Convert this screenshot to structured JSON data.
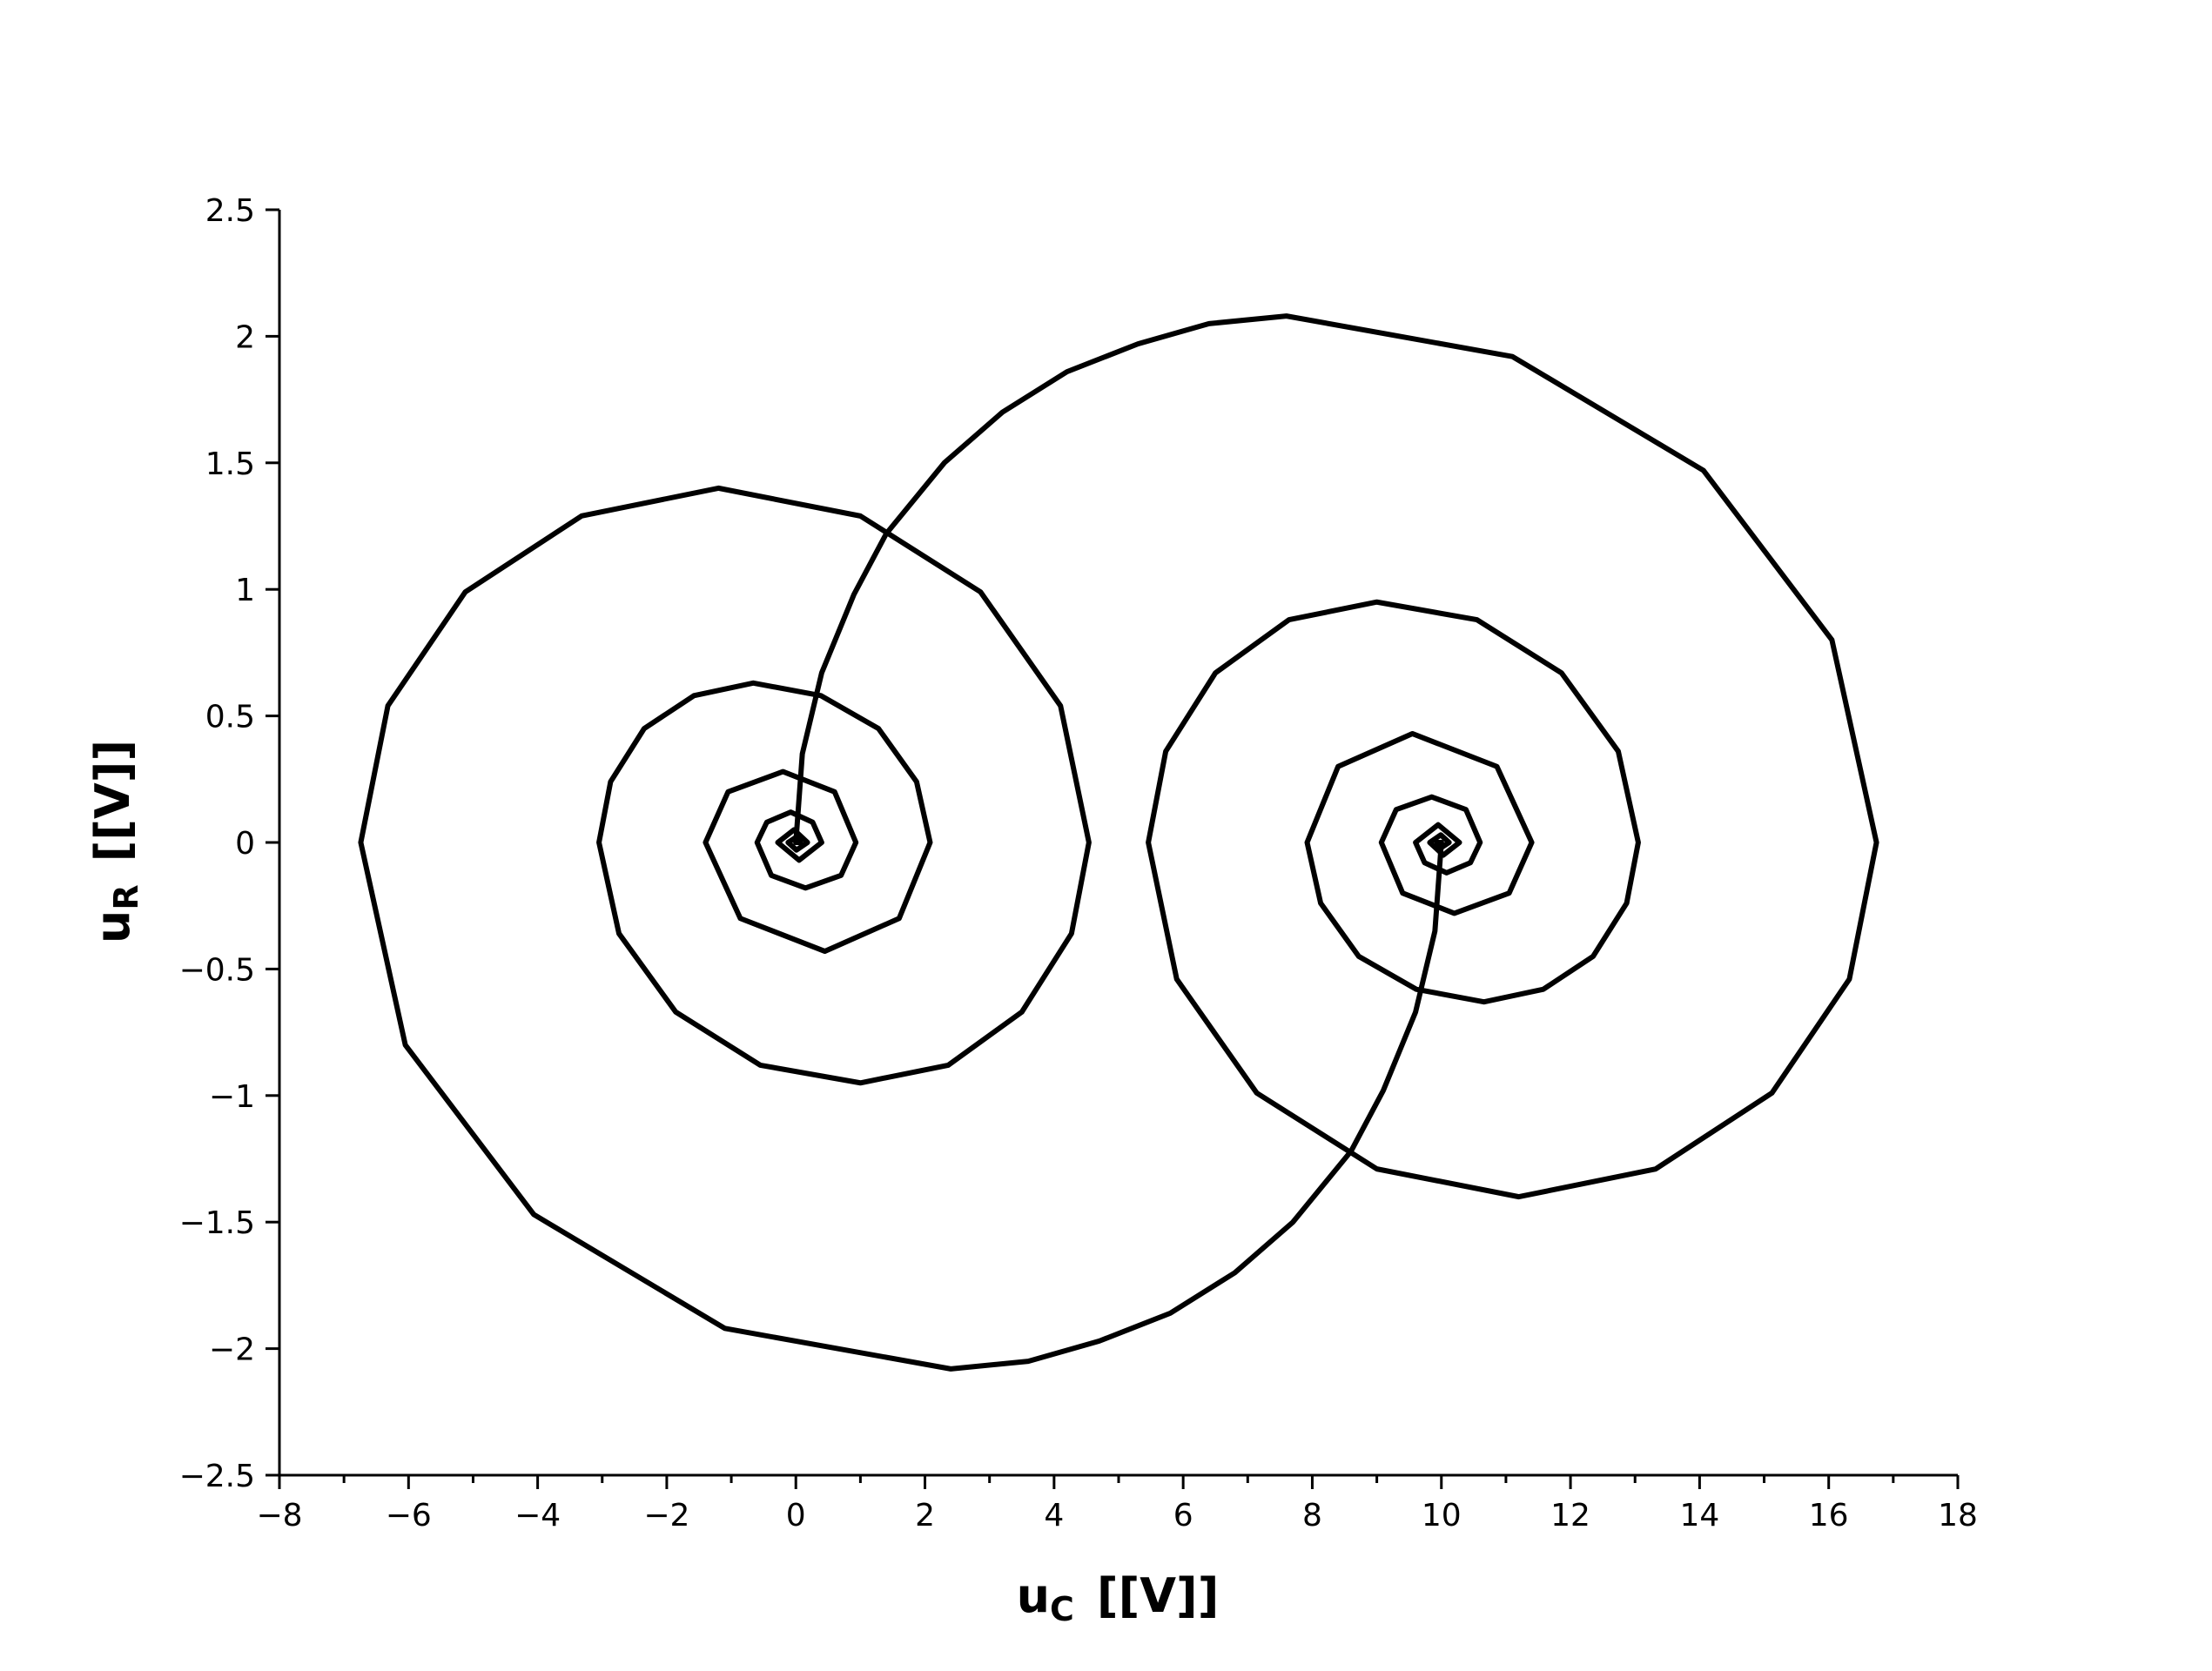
{
  "chart_data": {
    "type": "line",
    "xlabel": [
      "u",
      "C",
      "[[V]]"
    ],
    "ylabel": [
      "u",
      "R",
      "[[V]]"
    ],
    "xlim": [
      -8,
      18
    ],
    "ylim": [
      -2.5,
      2.5
    ],
    "xticks": [
      {
        "value": -8,
        "label": "−8"
      },
      {
        "value": -6,
        "label": "−6"
      },
      {
        "value": -4,
        "label": "−4"
      },
      {
        "value": -2,
        "label": "−2"
      },
      0,
      2,
      4,
      6,
      8,
      10,
      12,
      14,
      16,
      18
    ],
    "xminor_ticks": [
      -7,
      -5,
      -3,
      -1,
      1,
      3,
      5,
      7,
      9,
      11,
      13,
      15,
      17
    ],
    "yticks": [
      {
        "value": -2.5,
        "label": "−2.5"
      },
      {
        "value": -2,
        "label": "−2"
      },
      {
        "value": -1.5,
        "label": "−1.5"
      },
      {
        "value": -1,
        "label": "−1"
      },
      {
        "value": -0.5,
        "label": "−0.5"
      },
      0,
      0.5,
      1,
      1.5,
      2,
      2.5
    ],
    "series": [
      {
        "color": "#000000",
        "x": [
          0,
          0.1,
          0.4,
          0.9,
          1.4,
          2.3,
          3.2,
          4.2,
          5.3,
          6.4,
          7.6,
          11.1,
          14.06,
          16.05,
          16.74,
          16.32,
          15.12,
          13.32,
          11.2,
          9.0,
          7.14,
          5.9,
          5.46,
          5.73,
          6.5,
          7.64,
          9.0,
          10.55,
          11.86,
          12.74,
          13.05,
          12.87,
          12.35,
          11.58,
          10.66,
          9.61,
          8.72,
          8.13,
          7.92,
          8.4,
          9.55,
          10.86,
          11.4,
          11.05,
          10.2,
          9.4,
          9.07,
          9.3,
          9.85,
          10.38,
          10.6,
          10.45,
          10.08,
          9.74,
          9.6,
          9.95,
          10.28,
          10.03,
          9.82,
          9.99,
          10.12,
          10.0,
          9.93,
          10.0
        ],
        "values": [
          0,
          0.35,
          0.67,
          0.98,
          1.22,
          1.5,
          1.7,
          1.86,
          1.97,
          2.05,
          2.08,
          1.92,
          1.47,
          0.8,
          0,
          -0.54,
          -0.99,
          -1.29,
          -1.4,
          -1.29,
          -0.99,
          -0.54,
          0,
          0.36,
          0.67,
          0.88,
          0.95,
          0.88,
          0.67,
          0.36,
          0,
          -0.24,
          -0.45,
          -0.58,
          -0.63,
          -0.58,
          -0.45,
          -0.24,
          0,
          0.3,
          0.43,
          0.3,
          0,
          -0.2,
          -0.28,
          -0.2,
          0,
          0.13,
          0.18,
          0.13,
          0,
          -0.08,
          -0.12,
          -0.08,
          0,
          0.07,
          0,
          -0.05,
          0,
          0.03,
          0,
          -0.02,
          0,
          0
        ]
      },
      {
        "color": "#000000",
        "x": [
          10,
          9.9,
          9.6,
          9.1,
          8.6,
          7.7,
          6.8,
          5.8,
          4.7,
          3.6,
          2.4,
          -1.1,
          -4.06,
          -6.05,
          -6.74,
          -6.32,
          -5.12,
          -3.32,
          -1.2,
          1.0,
          2.86,
          4.1,
          4.54,
          4.27,
          3.5,
          2.36,
          1.0,
          -0.55,
          -1.86,
          -2.74,
          -3.05,
          -2.87,
          -2.35,
          -1.58,
          -0.66,
          0.39,
          1.28,
          1.87,
          2.08,
          1.6,
          0.45,
          -0.86,
          -1.4,
          -1.05,
          -0.2,
          0.6,
          0.93,
          0.7,
          0.15,
          -0.38,
          -0.6,
          -0.45,
          -0.08,
          0.26,
          0.4,
          0.05,
          -0.28,
          -0.03,
          0.18,
          0.01,
          -0.12,
          0,
          0.07,
          0
        ],
        "values": [
          0,
          -0.35,
          -0.67,
          -0.98,
          -1.22,
          -1.5,
          -1.7,
          -1.86,
          -1.97,
          -2.05,
          -2.08,
          -1.92,
          -1.47,
          -0.8,
          0,
          0.54,
          0.99,
          1.29,
          1.4,
          1.29,
          0.99,
          0.54,
          0,
          -0.36,
          -0.67,
          -0.88,
          -0.95,
          -0.88,
          -0.67,
          -0.36,
          0,
          0.24,
          0.45,
          0.58,
          0.63,
          0.58,
          0.45,
          0.24,
          0,
          -0.3,
          -0.43,
          -0.3,
          0,
          0.2,
          0.28,
          0.2,
          0,
          -0.13,
          -0.18,
          -0.13,
          0,
          0.08,
          0.12,
          0.08,
          0,
          -0.07,
          0,
          0.05,
          0,
          -0.03,
          0,
          0.02,
          0,
          0
        ]
      }
    ]
  }
}
